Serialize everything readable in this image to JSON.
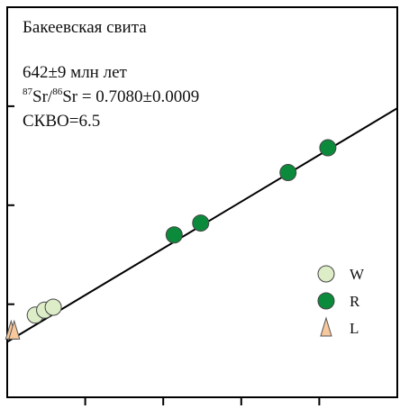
{
  "chart_data": {
    "type": "scatter",
    "title": "Бакеевская свита",
    "annotations": {
      "age": "642±9 млн лет",
      "ratio": [
        "87",
        "Sr/",
        "86",
        "Sr = 0.7080±0.0009"
      ],
      "mswd": "СКВО=6.5"
    },
    "xlim": [
      0,
      5
    ],
    "ylim": [
      0.06,
      4
    ],
    "xticks": [
      1,
      2,
      3,
      4
    ],
    "yticks": [
      1,
      2,
      3
    ],
    "fit_line": {
      "x": [
        0,
        5
      ],
      "y": [
        0.62,
        2.98
      ],
      "color": "#000000"
    },
    "series": [
      {
        "name": "W",
        "marker": "circle",
        "color": "#dcedc8",
        "x": [
          0.36,
          0.48,
          0.59
        ],
        "values": [
          0.89,
          0.94,
          0.97
        ]
      },
      {
        "name": "R",
        "marker": "circle",
        "color": "#0b8a3b",
        "x": [
          2.14,
          2.48,
          3.6,
          4.11
        ],
        "values": [
          1.7,
          1.82,
          2.33,
          2.58
        ]
      },
      {
        "name": "L",
        "marker": "triangle",
        "color": "#f7c89c",
        "x": [
          0.05,
          0.09
        ],
        "values": [
          0.73,
          0.73
        ]
      }
    ]
  }
}
